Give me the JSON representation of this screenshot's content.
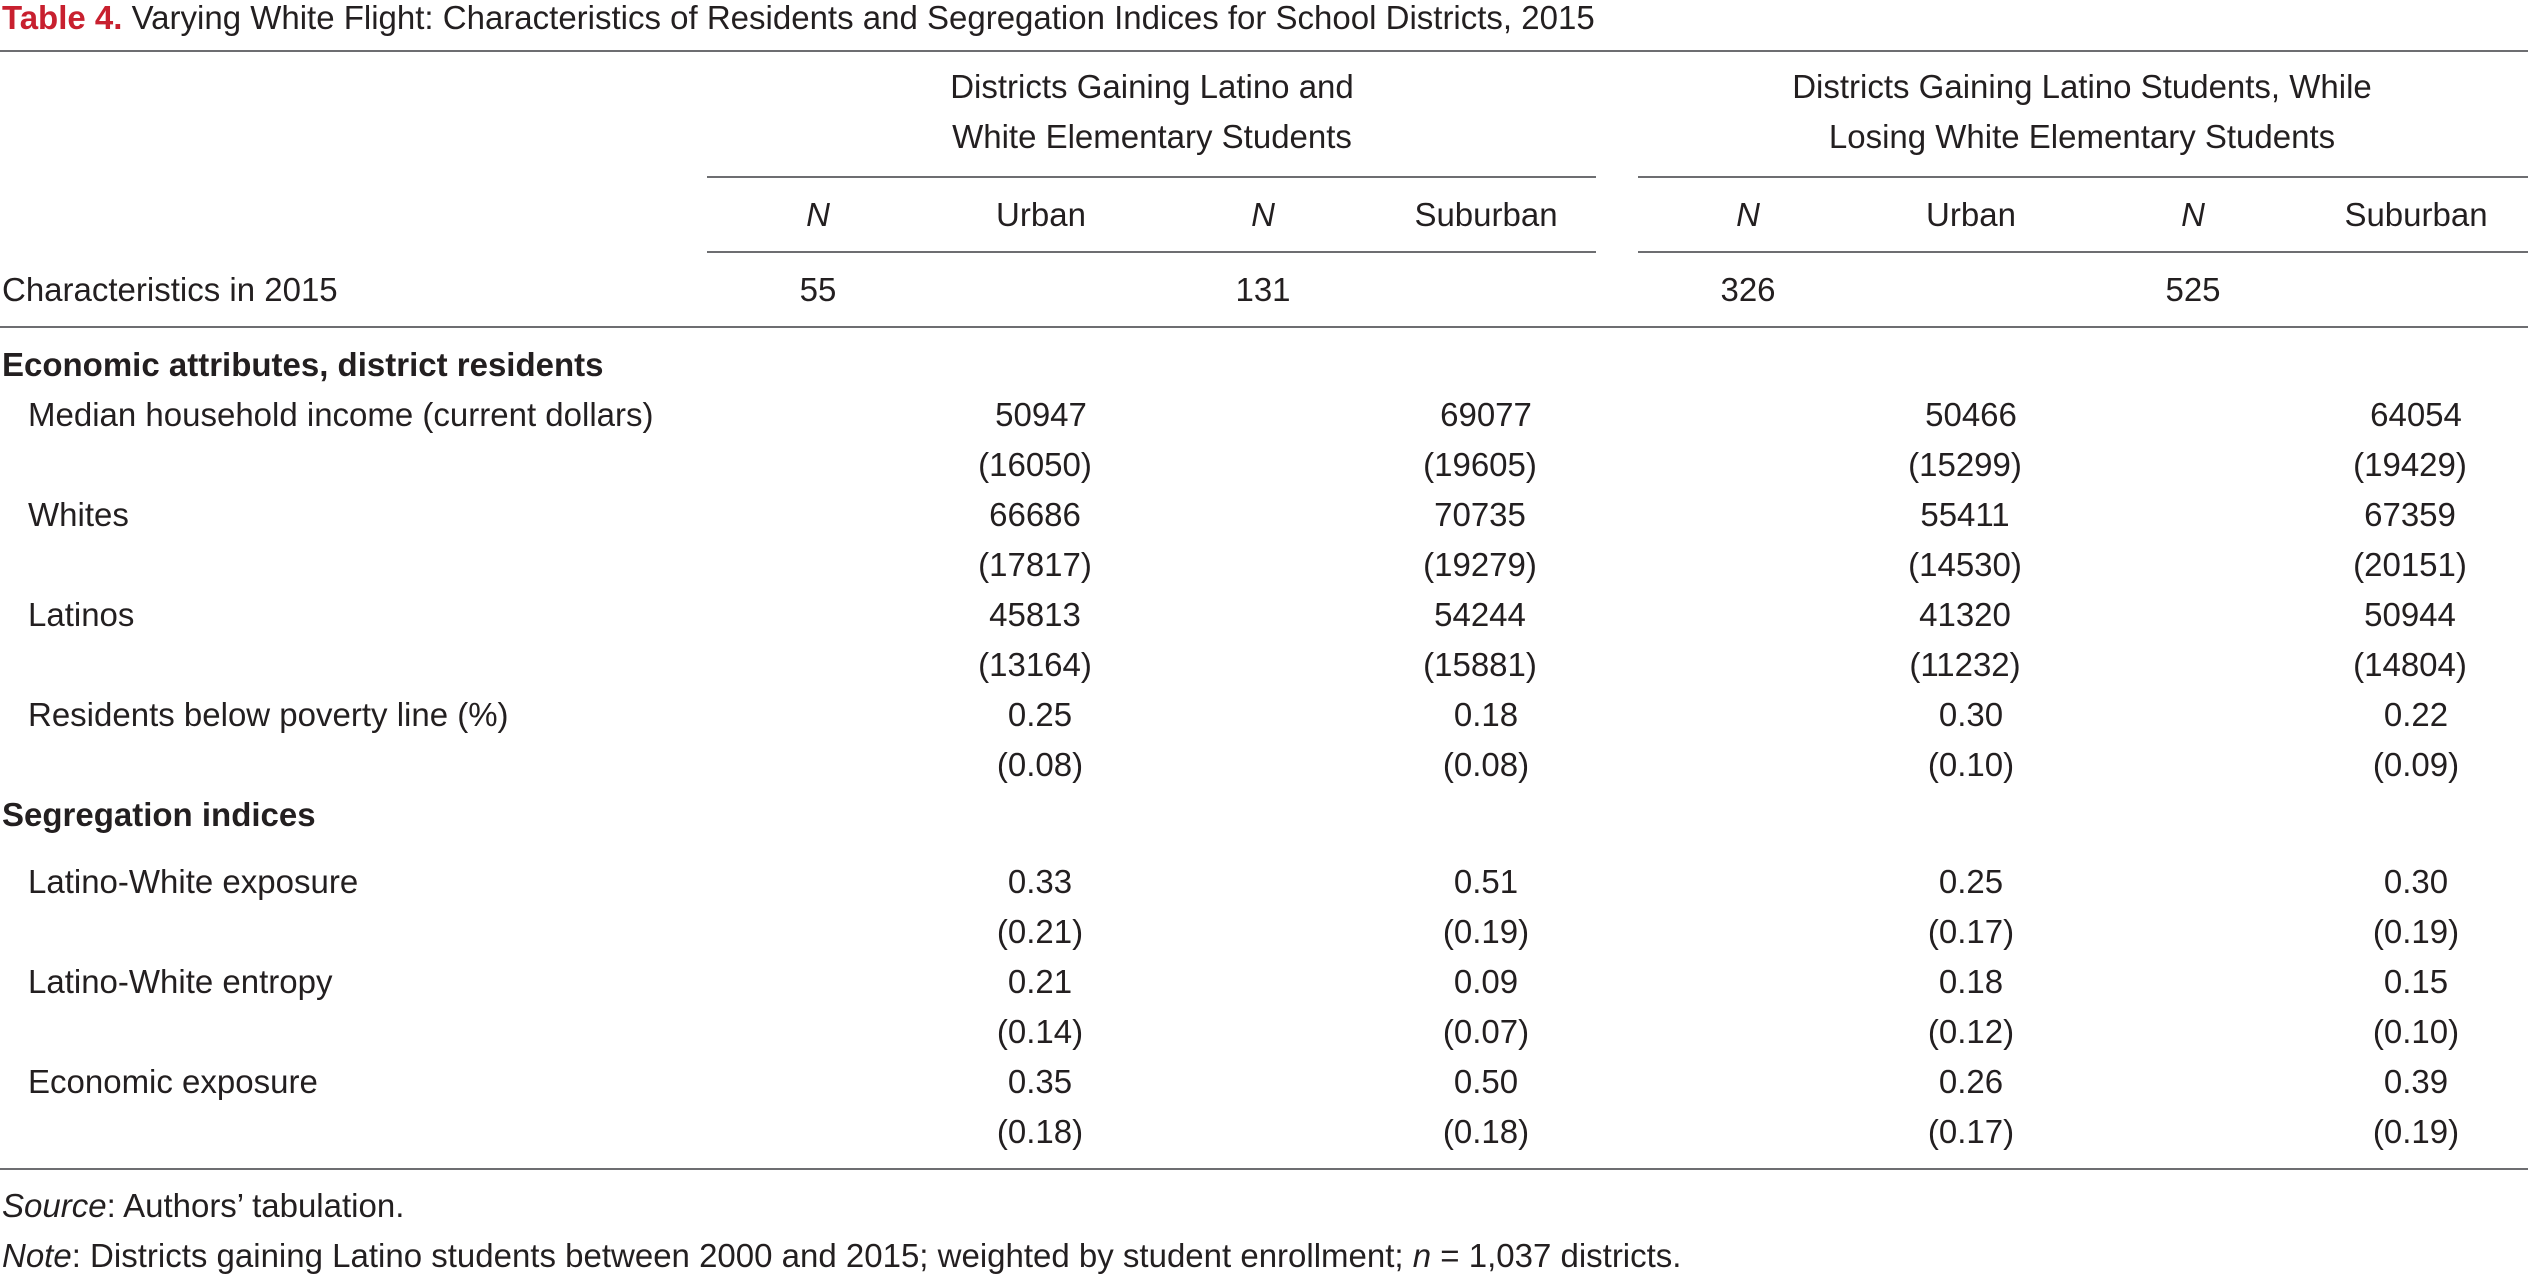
{
  "title": {
    "label": "Table 4.",
    "text": "Varying White Flight: Characteristics of Residents and Segregation Indices for School Districts, 2015"
  },
  "groups": [
    {
      "line1": "Districts Gaining Latino and",
      "line2": "White Elementary Students"
    },
    {
      "line1": "Districts Gaining Latino Students, While",
      "line2": "Losing White Elementary Students"
    }
  ],
  "columns": [
    "N",
    "Urban",
    "N",
    "Suburban",
    "N",
    "Urban",
    "N",
    "Suburban"
  ],
  "characteristics_row": {
    "label": "Characteristics in 2015",
    "n_values": [
      "55",
      "131",
      "326",
      "525"
    ]
  },
  "sections": [
    {
      "heading": "Economic attributes, district residents",
      "rows": [
        {
          "label": "Median household income (current dollars)",
          "values": [
            "50947",
            "69077",
            "50466",
            "64054"
          ],
          "sds": [
            "(16050)",
            "(19605)",
            "(15299)",
            "(19429)"
          ]
        },
        {
          "label": "Whites",
          "values": [
            "66686",
            "70735",
            "55411",
            "67359"
          ],
          "sds": [
            "(17817)",
            "(19279)",
            "(14530)",
            "(20151)"
          ]
        },
        {
          "label": "Latinos",
          "values": [
            "45813",
            "54244",
            "41320",
            "50944"
          ],
          "sds": [
            "(13164)",
            "(15881)",
            "(11232)",
            "(14804)"
          ]
        },
        {
          "label": "Residents below poverty line (%)",
          "values": [
            "0.25",
            "0.18",
            "0.30",
            "0.22"
          ],
          "sds": [
            "(0.08)",
            "(0.08)",
            "(0.10)",
            "(0.09)"
          ]
        }
      ]
    },
    {
      "heading": "Segregation indices",
      "rows": [
        {
          "label": "Latino-White exposure",
          "values": [
            "0.33",
            "0.51",
            "0.25",
            "0.30"
          ],
          "sds": [
            "(0.21)",
            "(0.19)",
            "(0.17)",
            "(0.19)"
          ]
        },
        {
          "label": "Latino-White entropy",
          "values": [
            "0.21",
            "0.09",
            "0.18",
            "0.15"
          ],
          "sds": [
            "(0.14)",
            "(0.07)",
            "(0.12)",
            "(0.10)"
          ]
        },
        {
          "label": "Economic exposure",
          "values": [
            "0.35",
            "0.50",
            "0.26",
            "0.39"
          ],
          "sds": [
            "(0.18)",
            "(0.18)",
            "(0.17)",
            "(0.19)"
          ]
        }
      ]
    }
  ],
  "footer": {
    "source_label": "Source",
    "source_text": ": Authors’ tabulation.",
    "note_label": "Note",
    "note_text_1": ": Districts gaining Latino students between 2000 and 2015; weighted by student enrollment; ",
    "note_n": "n",
    "note_text_2": " = 1,037 districts."
  }
}
